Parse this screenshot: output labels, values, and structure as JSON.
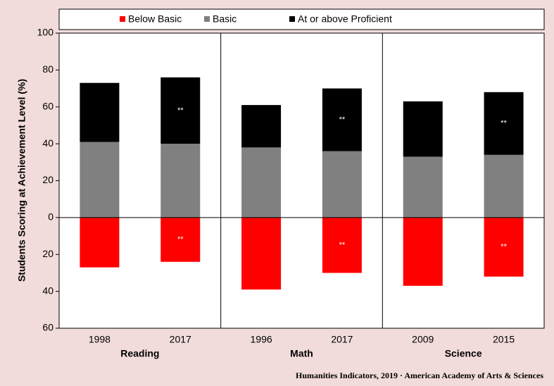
{
  "chart_data": {
    "type": "diverging_stacked_bar",
    "y_label": "Students Scoring at Achievement Level (%)",
    "footer": "Humanities Indicators, 2019 · American Academy of Arts & Sciences",
    "categories": [
      "1998",
      "2017",
      "1996",
      "2017",
      "2009",
      "2015"
    ],
    "groups": [
      {
        "name": "Reading",
        "count": 2
      },
      {
        "name": "Math",
        "count": 2
      },
      {
        "name": "Science",
        "count": 2
      }
    ],
    "series": [
      {
        "name": "Below Basic",
        "color": "#ff0000",
        "values": [
          -27,
          -24,
          -39,
          -30,
          -37,
          -32
        ]
      },
      {
        "name": "Basic",
        "color": "#808080",
        "values": [
          41,
          40,
          38,
          36,
          33,
          34
        ]
      },
      {
        "name": "At or above Proficient",
        "color": "#000000",
        "values": [
          32,
          36,
          23,
          34,
          30,
          34
        ]
      }
    ],
    "annotations": [
      {
        "text": "**",
        "series": 2,
        "index": 1
      },
      {
        "text": "**",
        "series": 0,
        "index": 1
      },
      {
        "text": "**",
        "series": 2,
        "index": 3
      },
      {
        "text": "**",
        "series": 0,
        "index": 3
      },
      {
        "text": "**",
        "series": 2,
        "index": 5
      },
      {
        "text": "**",
        "series": 0,
        "index": 5
      }
    ],
    "ylim": [
      -60,
      100
    ],
    "yticks": [
      100,
      80,
      60,
      40,
      20,
      0,
      {
        "value": -20,
        "label": "20"
      },
      {
        "value": -40,
        "label": "40"
      },
      {
        "value": -60,
        "label": "60"
      }
    ],
    "legend": "top",
    "grid": false
  }
}
